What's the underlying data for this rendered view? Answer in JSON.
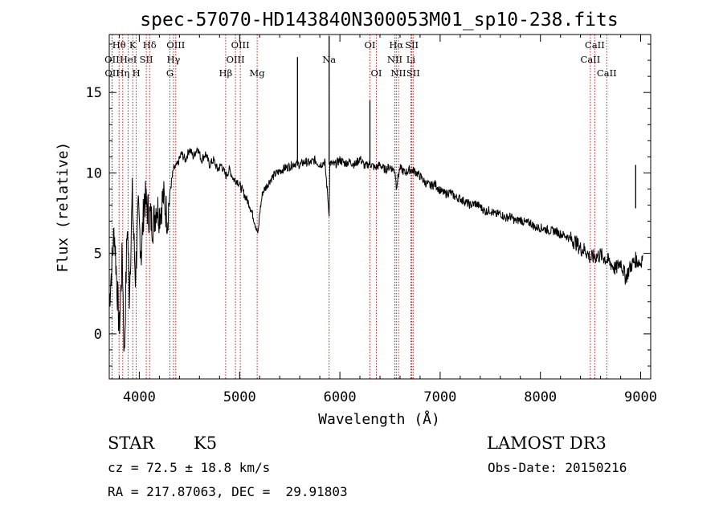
{
  "chart_data": {
    "type": "line",
    "title": "spec-57070-HD143840N300053M01_sp10-238.fits",
    "xlabel": "Wavelength (Å)",
    "ylabel": "Flux (relative)",
    "xlim": [
      3700,
      9100
    ],
    "ylim": [
      -2.8,
      18.6
    ],
    "xticks": [
      4000,
      5000,
      6000,
      7000,
      8000,
      9000
    ],
    "yticks": [
      0,
      5,
      10,
      15
    ],
    "line_color": "#000000",
    "marker_color": "#cc0000",
    "series": [
      {
        "name": "flux",
        "x": [
          3700,
          3750,
          3800,
          3830,
          3850,
          3880,
          3900,
          3930,
          3960,
          3990,
          4020,
          4050,
          4080,
          4110,
          4140,
          4170,
          4200,
          4240,
          4280,
          4310,
          4340,
          4380,
          4420,
          4460,
          4500,
          4540,
          4580,
          4620,
          4660,
          4700,
          4740,
          4780,
          4820,
          4861,
          4900,
          4940,
          4980,
          5020,
          5060,
          5100,
          5140,
          5170,
          5185,
          5200,
          5230,
          5270,
          5310,
          5350,
          5400,
          5450,
          5500,
          5550,
          5600,
          5650,
          5700,
          5750,
          5800,
          5850,
          5893,
          5900,
          5950,
          6000,
          6050,
          6100,
          6150,
          6200,
          6250,
          6300,
          6350,
          6400,
          6450,
          6500,
          6550,
          6563,
          6600,
          6650,
          6700,
          6750,
          6800,
          6850,
          6900,
          6950,
          7000,
          7050,
          7100,
          7150,
          7200,
          7250,
          7300,
          7350,
          7400,
          7450,
          7500,
          7550,
          7600,
          7650,
          7700,
          7750,
          7800,
          7850,
          7900,
          7950,
          8000,
          8050,
          8100,
          8150,
          8200,
          8250,
          8300,
          8350,
          8400,
          8450,
          8498,
          8542,
          8600,
          8662,
          8700,
          8750,
          8800,
          8850,
          8900,
          8950,
          9000,
          9020
        ],
        "values": [
          2.0,
          6.5,
          0.2,
          5.0,
          -1.5,
          7.0,
          2.5,
          8.5,
          3.5,
          7.5,
          5.0,
          8.5,
          7.8,
          7.2,
          6.8,
          8.0,
          7.5,
          8.5,
          7.2,
          9.0,
          10.2,
          10.5,
          11.2,
          10.8,
          11.5,
          11.0,
          11.6,
          10.8,
          11.2,
          10.5,
          10.8,
          10.2,
          10.5,
          9.8,
          10.2,
          9.6,
          9.5,
          9.0,
          8.5,
          8.0,
          7.2,
          6.5,
          6.2,
          7.5,
          8.8,
          9.2,
          9.6,
          9.9,
          10.1,
          10.3,
          10.4,
          10.6,
          10.5,
          10.7,
          10.6,
          10.8,
          10.5,
          10.7,
          7.5,
          10.6,
          10.5,
          10.8,
          10.6,
          10.7,
          10.5,
          10.9,
          10.4,
          10.6,
          10.3,
          10.5,
          10.2,
          10.4,
          10.1,
          9.2,
          10.3,
          10.0,
          10.2,
          10.1,
          9.8,
          9.4,
          9.2,
          9.3,
          8.9,
          8.7,
          8.8,
          8.5,
          8.4,
          8.2,
          8.0,
          8.1,
          7.9,
          7.6,
          7.7,
          7.4,
          7.5,
          7.2,
          7.3,
          7.0,
          7.1,
          6.9,
          6.9,
          6.6,
          6.6,
          6.5,
          6.4,
          6.4,
          6.2,
          6.1,
          5.9,
          5.7,
          5.3,
          5.2,
          4.7,
          4.8,
          4.9,
          4.6,
          4.4,
          4.0,
          4.5,
          3.5,
          4.2,
          4.6,
          4.4,
          4.9
        ]
      }
    ],
    "lines": [
      {
        "name": "Hθ",
        "w": 3798,
        "row": 0
      },
      {
        "name": "OII",
        "w": 3727,
        "row": 1
      },
      {
        "name": "OII",
        "w": 3729,
        "row": 2
      },
      {
        "name": "Hη",
        "w": 3835,
        "row": 2
      },
      {
        "name": "HeI",
        "w": 3889,
        "row": 1
      },
      {
        "name": "K",
        "w": 3934,
        "row": 0
      },
      {
        "name": "SII",
        "w": 4069,
        "row": 1
      },
      {
        "name": "H",
        "w": 3969,
        "row": 2
      },
      {
        "name": "Hδ",
        "w": 4102,
        "row": 0
      },
      {
        "name": "OIII",
        "w": 4363,
        "row": 0
      },
      {
        "name": "Hγ",
        "w": 4340,
        "row": 1
      },
      {
        "name": "G",
        "w": 4305,
        "row": 2
      },
      {
        "name": "Hβ",
        "w": 4861,
        "row": 2
      },
      {
        "name": "OIII",
        "w": 5007,
        "row": 0
      },
      {
        "name": "OIII",
        "w": 4959,
        "row": 1
      },
      {
        "name": "Mg",
        "w": 5175,
        "row": 2
      },
      {
        "name": "Na",
        "w": 5893,
        "row": 1
      },
      {
        "name": "OI",
        "w": 6300,
        "row": 0
      },
      {
        "name": "OI",
        "w": 6364,
        "row": 2
      },
      {
        "name": "Hα",
        "w": 6563,
        "row": 0
      },
      {
        "name": "NII",
        "w": 6548,
        "row": 1
      },
      {
        "name": "NII",
        "w": 6584,
        "row": 2
      },
      {
        "name": "SII",
        "w": 6717,
        "row": 0
      },
      {
        "name": "Li",
        "w": 6708,
        "row": 1
      },
      {
        "name": "SII",
        "w": 6731,
        "row": 2
      },
      {
        "name": "CaII",
        "w": 8542,
        "row": 0
      },
      {
        "name": "CaII",
        "w": 8498,
        "row": 1
      },
      {
        "name": "CaII",
        "w": 8662,
        "row": 2
      }
    ]
  },
  "info": {
    "class": "STAR",
    "subclass": "K5",
    "survey": "LAMOST DR3",
    "cz": "cz = 72.5 ± 18.8 km/s",
    "obs_date": "Obs-Date: 20150216",
    "radec": "RA = 217.87063, DEC =  29.91803"
  }
}
